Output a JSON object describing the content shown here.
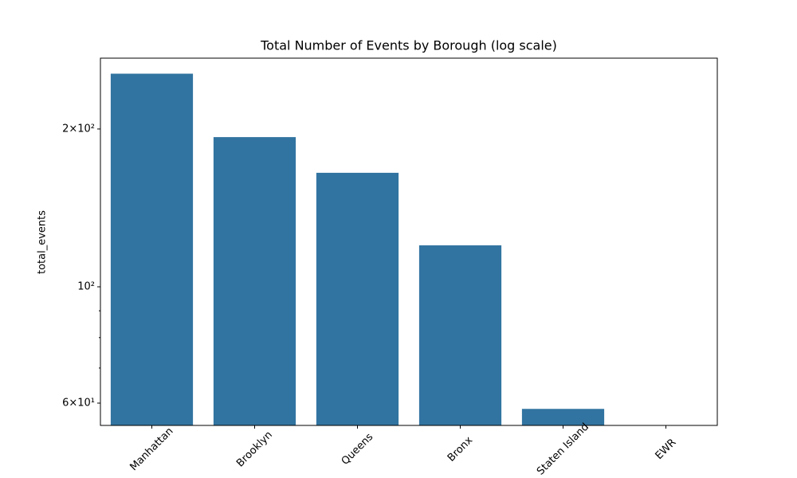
{
  "chart_data": {
    "type": "bar",
    "title": "Total Number of Events by Borough (log scale)",
    "y_label": "total_events",
    "categories": [
      "Manhattan",
      "Brooklyn",
      "Queens",
      "Bronx",
      "Staten Island",
      "EWR"
    ],
    "values": [
      255,
      193,
      165,
      120,
      58.5,
      null
    ],
    "color": "#3274a1",
    "log_y": true,
    "ylim": [
      54.4,
      273
    ],
    "yticks": [
      {
        "value": 60,
        "label": "6×10¹"
      },
      {
        "value": 100,
        "label": "10²"
      },
      {
        "value": 200,
        "label": "2×10²"
      }
    ],
    "yminorticks": [
      70,
      80,
      90
    ],
    "grid": false
  }
}
